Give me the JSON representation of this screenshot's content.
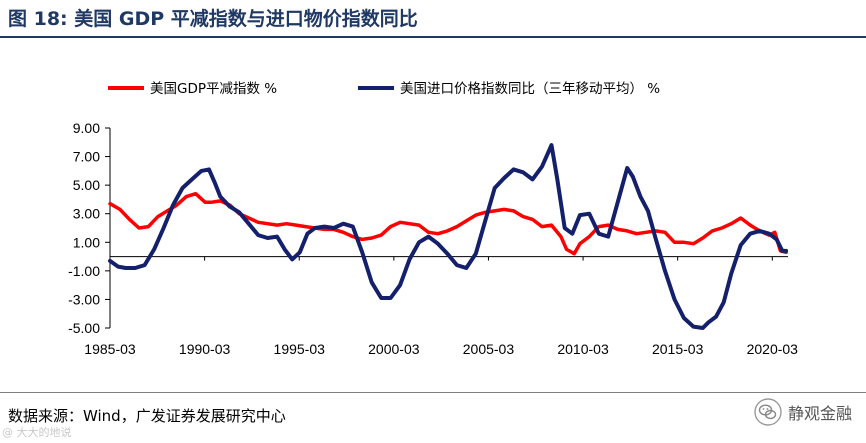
{
  "header": {
    "title": "图 18:  美国 GDP 平减指数与进口物价指数同比"
  },
  "footer": {
    "source": "数据来源：Wind，广发证券发展研究中心",
    "watermark": "@ 大大的地说",
    "brand": "静观金融"
  },
  "colors": {
    "title": "#1f3864",
    "series_red": "#ff0000",
    "series_navy": "#14206b"
  },
  "chart_data": {
    "type": "line",
    "legend": {
      "position": "top",
      "entries": [
        "美国GDP平减指数 %",
        "美国进口价格指数同比（三年移动平均） %"
      ]
    },
    "ylim": [
      -5,
      9
    ],
    "yticks": [
      -5,
      -3,
      -1,
      1,
      3,
      5,
      7,
      9
    ],
    "ytick_labels": [
      "-5.00",
      "-3.00",
      "-1.00",
      "1.00",
      "3.00",
      "5.00",
      "7.00",
      "9.00"
    ],
    "xlim": [
      1985.17,
      2021.0
    ],
    "xticks": [
      1985.17,
      1990.17,
      1995.17,
      2000.17,
      2005.17,
      2010.17,
      2015.17,
      2020.17
    ],
    "xtick_labels": [
      "1985-03",
      "1990-03",
      "1995-03",
      "2000-03",
      "2005-03",
      "2010-03",
      "2015-03",
      "2020-03"
    ],
    "grid": false,
    "series": [
      {
        "name": "美国GDP平减指数 %",
        "color": "#ff0000",
        "x": [
          1985.17,
          1985.7,
          1986.2,
          1986.7,
          1987.2,
          1987.7,
          1988.2,
          1988.7,
          1989.2,
          1989.7,
          1990.2,
          1990.5,
          1991.0,
          1991.5,
          1992.0,
          1992.5,
          1993.0,
          1993.5,
          1994.0,
          1994.5,
          1995.0,
          1995.5,
          1996.0,
          1996.5,
          1997.0,
          1997.5,
          1998.0,
          1998.5,
          1999.0,
          1999.5,
          2000.0,
          2000.5,
          2001.0,
          2001.5,
          2002.0,
          2002.5,
          2003.0,
          2003.5,
          2004.0,
          2004.5,
          2005.0,
          2005.5,
          2006.0,
          2006.5,
          2007.0,
          2007.5,
          2008.0,
          2008.5,
          2009.0,
          2009.3,
          2009.7,
          2010.0,
          2010.5,
          2011.0,
          2011.5,
          2012.0,
          2012.5,
          2013.0,
          2013.5,
          2014.0,
          2014.5,
          2015.0,
          2015.5,
          2016.0,
          2016.5,
          2017.0,
          2017.5,
          2018.0,
          2018.5,
          2019.0,
          2019.5,
          2020.0,
          2020.3,
          2020.6,
          2020.9
        ],
        "values": [
          3.7,
          3.3,
          2.6,
          2.0,
          2.1,
          2.8,
          3.2,
          3.6,
          4.2,
          4.4,
          3.8,
          3.8,
          3.9,
          3.6,
          3.0,
          2.7,
          2.4,
          2.3,
          2.2,
          2.3,
          2.2,
          2.1,
          2.0,
          1.9,
          1.9,
          1.7,
          1.4,
          1.2,
          1.3,
          1.5,
          2.1,
          2.4,
          2.3,
          2.2,
          1.7,
          1.6,
          1.8,
          2.1,
          2.5,
          2.9,
          3.1,
          3.2,
          3.3,
          3.2,
          2.8,
          2.6,
          2.1,
          2.2,
          1.4,
          0.5,
          0.2,
          0.9,
          1.4,
          2.1,
          2.2,
          1.9,
          1.8,
          1.6,
          1.7,
          1.8,
          1.7,
          1.0,
          1.0,
          0.9,
          1.3,
          1.8,
          2.0,
          2.3,
          2.7,
          2.2,
          1.8,
          1.5,
          1.7,
          0.4,
          0.3
        ]
      },
      {
        "name": "美国进口价格指数同比（三年移动平均） %",
        "color": "#14206b",
        "x": [
          1985.17,
          1985.6,
          1986.0,
          1986.5,
          1987.0,
          1987.5,
          1988.0,
          1988.5,
          1989.0,
          1989.5,
          1990.0,
          1990.4,
          1990.7,
          1991.0,
          1991.5,
          1992.0,
          1992.5,
          1993.0,
          1993.5,
          1994.0,
          1994.4,
          1994.8,
          1995.2,
          1995.6,
          1996.0,
          1996.5,
          1997.0,
          1997.5,
          1998.0,
          1998.5,
          1999.0,
          1999.5,
          2000.0,
          2000.5,
          2001.0,
          2001.5,
          2002.0,
          2002.5,
          2003.0,
          2003.5,
          2004.0,
          2004.5,
          2005.0,
          2005.5,
          2006.0,
          2006.5,
          2007.0,
          2007.5,
          2008.0,
          2008.5,
          2008.8,
          2009.2,
          2009.6,
          2010.0,
          2010.5,
          2011.0,
          2011.5,
          2012.0,
          2012.5,
          2012.8,
          2013.2,
          2013.6,
          2014.0,
          2014.5,
          2015.0,
          2015.5,
          2016.0,
          2016.5,
          2016.8,
          2017.2,
          2017.6,
          2018.0,
          2018.5,
          2019.0,
          2019.5,
          2020.0,
          2020.4,
          2020.7,
          2020.9
        ],
        "values": [
          -0.3,
          -0.7,
          -0.8,
          -0.8,
          -0.6,
          0.5,
          2.0,
          3.6,
          4.8,
          5.4,
          6.0,
          6.1,
          5.2,
          4.2,
          3.5,
          3.1,
          2.3,
          1.5,
          1.3,
          1.4,
          0.5,
          -0.2,
          0.3,
          1.6,
          2.0,
          2.1,
          2.0,
          2.3,
          2.1,
          0.3,
          -1.8,
          -2.9,
          -2.9,
          -2.0,
          -0.2,
          1.0,
          1.4,
          0.9,
          0.2,
          -0.6,
          -0.8,
          0.2,
          2.5,
          4.8,
          5.5,
          6.1,
          5.9,
          5.4,
          6.3,
          7.8,
          5.5,
          2.0,
          1.6,
          2.9,
          3.0,
          1.6,
          1.4,
          3.8,
          6.2,
          5.6,
          4.2,
          3.2,
          1.3,
          -1.0,
          -3.0,
          -4.3,
          -4.9,
          -5.0,
          -4.6,
          -4.2,
          -3.2,
          -1.2,
          0.8,
          1.6,
          1.8,
          1.6,
          1.2,
          0.4,
          0.4
        ]
      }
    ]
  }
}
